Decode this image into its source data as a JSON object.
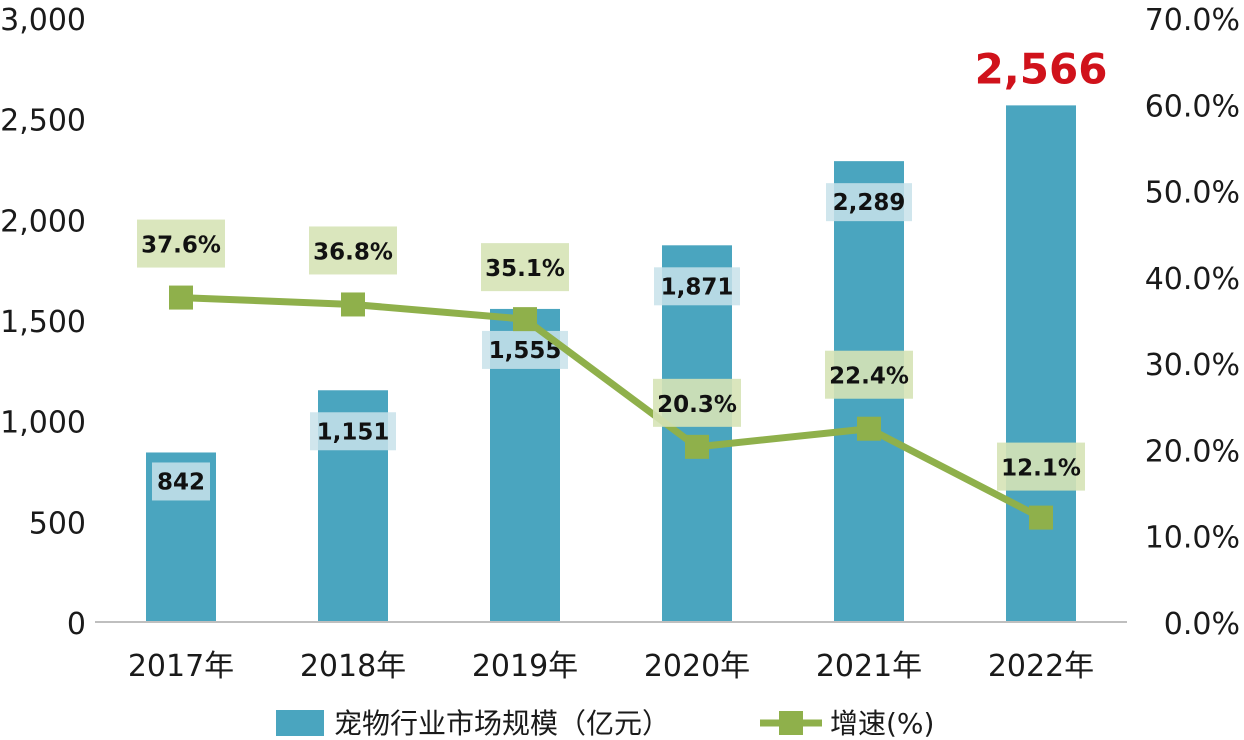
{
  "chart_data": {
    "type": "bar",
    "categories": [
      "2017年",
      "2018年",
      "2019年",
      "2020年",
      "2021年",
      "2022年"
    ],
    "series": [
      {
        "name": "宠物行业市场规模（亿元）",
        "type": "bar",
        "axis": "left",
        "values": [
          842,
          1151,
          1555,
          1871,
          2289,
          2566
        ],
        "labels": [
          "842",
          "1,151",
          "1,555",
          "1,871",
          "2,289",
          "2,566"
        ],
        "color": "#4aa5bf"
      },
      {
        "name": "增速(%)",
        "type": "line",
        "axis": "right",
        "values": [
          37.6,
          36.8,
          35.1,
          20.3,
          22.4,
          12.1
        ],
        "labels": [
          "37.6%",
          "36.8%",
          "35.1%",
          "20.3%",
          "22.4%",
          "12.1%"
        ],
        "color": "#8fb04b"
      }
    ],
    "left_axis": {
      "ylim": [
        0,
        3000
      ],
      "ticks": [
        0,
        500,
        1000,
        1500,
        2000,
        2500,
        3000
      ],
      "tick_labels": [
        "0",
        "500",
        "1,000",
        "1,500",
        "2,000",
        "2,500",
        "3,000"
      ]
    },
    "right_axis": {
      "ylim": [
        0,
        70
      ],
      "ticks": [
        0,
        10,
        20,
        30,
        40,
        50,
        60,
        70
      ],
      "tick_labels": [
        "0.0%",
        "10.0%",
        "20.0%",
        "30.0%",
        "40.0%",
        "50.0%",
        "60.0%",
        "70.0%"
      ]
    },
    "highlight_color": "#d0121b",
    "bar_label_box_color": "#c8e2ea",
    "line_label_box_color": "#d6e3b6",
    "grid": false,
    "legend_position": "bottom"
  }
}
